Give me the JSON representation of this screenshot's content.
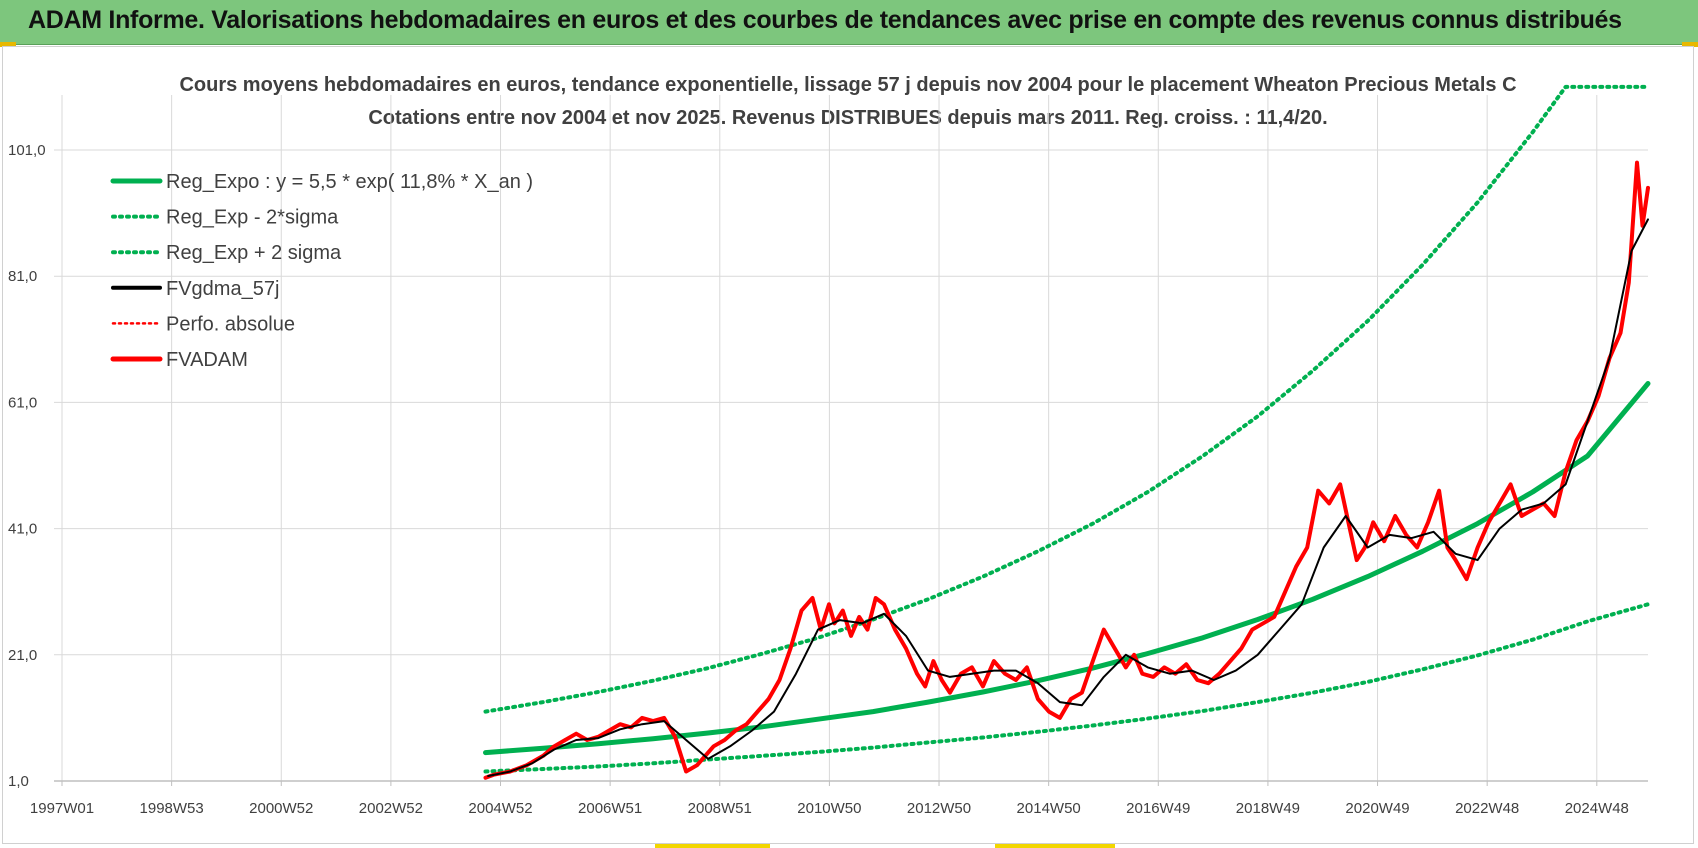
{
  "header": {
    "title": "ADAM Informe. Valorisations hebdomadaires en euros et des courbes de tendances avec prise en compte des revenus connus distribués"
  },
  "chart_data": {
    "type": "line",
    "title": "Cours moyens hebdomadaires en euros, tendance exponentielle, lissage 57 j depuis nov 2004 pour le placement Wheaton Precious Metals C",
    "subtitle": "Cotations entre nov 2004 et nov 2025. Revenus DISTRIBUES depuis mars 2011. Reg. croiss. : 11,4/20.",
    "xlabel": "",
    "ylabel": "",
    "x_range": [
      1997.0,
      2026.0
    ],
    "ylim": [
      1.0,
      111.0
    ],
    "y_ticks": [
      "1,0",
      "21,0",
      "41,0",
      "61,0",
      "81,0",
      "101,0"
    ],
    "x_ticks": [
      "1997W01",
      "1998W53",
      "2000W52",
      "2002W52",
      "2004W52",
      "2006W51",
      "2008W51",
      "2010W50",
      "2012W50",
      "2014W50",
      "2016W49",
      "2018W49",
      "2020W49",
      "2022W48",
      "2024W48"
    ],
    "grid": true,
    "legend_position": "top-left",
    "legend": [
      "Reg_Expo : y = 5,5 * exp( 11,8% *  X_an )",
      "Reg_Exp - 2*sigma",
      "Reg_Exp + 2 sigma",
      "FVgdma_57j",
      "Perfo. absolue",
      "FVADAM"
    ],
    "colors": {
      "reg": "#00b050",
      "fv": "#ff0000",
      "ma": "#000000",
      "grid": "#d9d9d9",
      "axis": "#bfbfbf"
    },
    "series": [
      {
        "name": "FVADAM",
        "x": [
          2004.85,
          2005.0,
          2005.3,
          2005.6,
          2005.9,
          2006.1,
          2006.3,
          2006.5,
          2006.7,
          2006.9,
          2007.1,
          2007.3,
          2007.5,
          2007.7,
          2007.9,
          2008.1,
          2008.3,
          2008.5,
          2008.7,
          2008.85,
          2009.0,
          2009.2,
          2009.4,
          2009.6,
          2009.8,
          2010.0,
          2010.2,
          2010.4,
          2010.6,
          2010.8,
          2010.95,
          2011.1,
          2011.2,
          2011.35,
          2011.5,
          2011.65,
          2011.8,
          2011.95,
          2012.1,
          2012.3,
          2012.5,
          2012.7,
          2012.85,
          2013.0,
          2013.15,
          2013.3,
          2013.5,
          2013.7,
          2013.9,
          2014.1,
          2014.3,
          2014.5,
          2014.7,
          2014.9,
          2015.1,
          2015.3,
          2015.5,
          2015.7,
          2015.9,
          2016.1,
          2016.3,
          2016.5,
          2016.65,
          2016.8,
          2017.0,
          2017.2,
          2017.4,
          2017.6,
          2017.8,
          2018.0,
          2018.2,
          2018.4,
          2018.6,
          2018.8,
          2019.0,
          2019.2,
          2019.4,
          2019.6,
          2019.8,
          2020.0,
          2020.2,
          2020.4,
          2020.55,
          2020.7,
          2020.85,
          2021.0,
          2021.2,
          2021.4,
          2021.6,
          2021.8,
          2022.0,
          2022.2,
          2022.35,
          2022.5,
          2022.7,
          2022.9,
          2023.1,
          2023.3,
          2023.5,
          2023.7,
          2023.9,
          2024.1,
          2024.3,
          2024.5,
          2024.7,
          2024.9,
          2025.1,
          2025.3,
          2025.5,
          2025.65,
          2025.8,
          2025.9,
          2026.0
        ],
        "values": [
          1.5,
          2.0,
          2.5,
          3.5,
          5.0,
          6.5,
          7.5,
          8.5,
          7.5,
          8.0,
          9.0,
          10.0,
          9.5,
          11.0,
          10.5,
          11.0,
          8.0,
          2.5,
          3.5,
          5.0,
          6.5,
          7.5,
          9.0,
          10.0,
          12.0,
          14.0,
          17.0,
          22.0,
          28.0,
          30.0,
          25.0,
          29.0,
          26.0,
          28.0,
          24.0,
          27.0,
          25.0,
          30.0,
          29.0,
          25.0,
          22.0,
          18.0,
          16.0,
          20.0,
          17.0,
          15.0,
          18.0,
          19.0,
          16.0,
          20.0,
          18.0,
          17.0,
          19.0,
          14.0,
          12.0,
          11.0,
          14.0,
          15.0,
          20.0,
          25.0,
          22.0,
          19.0,
          21.0,
          18.0,
          17.5,
          19.0,
          18.0,
          19.5,
          17.0,
          16.5,
          18.0,
          20.0,
          22.0,
          25.0,
          26.0,
          27.0,
          31.0,
          35.0,
          38.0,
          47.0,
          45.0,
          48.0,
          42.0,
          36.0,
          38.0,
          42.0,
          39.0,
          43.0,
          40.0,
          38.0,
          42.0,
          47.0,
          38.0,
          36.0,
          33.0,
          38.0,
          42.0,
          45.0,
          48.0,
          43.0,
          44.0,
          45.0,
          43.0,
          50.0,
          55.0,
          58.0,
          62.0,
          68.0,
          72.0,
          80.0,
          99.0,
          89.0,
          95.0
        ]
      },
      {
        "name": "FVgdma_57j",
        "x": [
          2004.9,
          2005.3,
          2005.7,
          2006.1,
          2006.5,
          2006.9,
          2007.3,
          2007.7,
          2008.1,
          2008.5,
          2008.9,
          2009.3,
          2009.7,
          2010.1,
          2010.5,
          2010.9,
          2011.3,
          2011.7,
          2012.1,
          2012.5,
          2012.9,
          2013.3,
          2013.7,
          2014.1,
          2014.5,
          2014.9,
          2015.3,
          2015.7,
          2016.1,
          2016.5,
          2016.9,
          2017.3,
          2017.7,
          2018.1,
          2018.5,
          2018.9,
          2019.3,
          2019.7,
          2020.1,
          2020.5,
          2020.9,
          2021.3,
          2021.7,
          2022.1,
          2022.5,
          2022.9,
          2023.3,
          2023.7,
          2024.1,
          2024.5,
          2024.9,
          2025.3,
          2025.7,
          2026.0
        ],
        "values": [
          1.8,
          2.5,
          3.8,
          6.0,
          7.5,
          7.8,
          9.2,
          10.0,
          10.5,
          7.5,
          4.5,
          6.5,
          9.0,
          12.0,
          18.0,
          25.0,
          26.5,
          26.0,
          27.5,
          24.0,
          18.5,
          17.5,
          18.0,
          18.5,
          18.5,
          16.5,
          13.5,
          13.0,
          17.5,
          21.0,
          19.0,
          18.0,
          18.5,
          17.0,
          18.5,
          21.0,
          25.0,
          29.0,
          38.0,
          43.0,
          38.0,
          40.0,
          39.5,
          40.5,
          37.0,
          36.0,
          41.0,
          44.0,
          45.0,
          48.0,
          58.0,
          68.0,
          85.0,
          90.0
        ]
      },
      {
        "name": "Reg_Expo : y = 5,5 * exp( 11,8% *  X_an )",
        "x": [
          2004.85,
          2005.9,
          2006.9,
          2007.9,
          2008.9,
          2009.9,
          2010.9,
          2011.9,
          2012.9,
          2013.9,
          2014.9,
          2015.9,
          2016.9,
          2017.9,
          2018.9,
          2019.9,
          2020.9,
          2021.9,
          2022.9,
          2023.9,
          2024.9,
          2026.0
        ],
        "values": [
          5.5,
          6.2,
          6.9,
          7.7,
          8.6,
          9.6,
          10.8,
          12.0,
          13.5,
          15.1,
          16.9,
          18.9,
          21.2,
          23.7,
          26.6,
          29.8,
          33.4,
          37.4,
          41.8,
          46.8,
          52.5,
          64.0
        ]
      },
      {
        "name": "Reg_Exp - 2*sigma",
        "x": [
          2004.85,
          2005.9,
          2006.9,
          2007.9,
          2008.9,
          2009.9,
          2010.9,
          2011.9,
          2012.9,
          2013.9,
          2014.9,
          2015.9,
          2016.9,
          2017.9,
          2018.9,
          2019.9,
          2020.9,
          2021.9,
          2022.9,
          2023.9,
          2024.9,
          2026.0
        ],
        "values": [
          2.5,
          2.9,
          3.3,
          3.8,
          4.4,
          5.0,
          5.6,
          6.3,
          7.1,
          7.9,
          8.8,
          9.8,
          10.9,
          12.1,
          13.5,
          15.0,
          16.7,
          18.7,
          20.9,
          23.4,
          26.3,
          29.0
        ]
      },
      {
        "name": "Reg_Exp + 2 sigma",
        "x": [
          2004.85,
          2005.9,
          2006.9,
          2007.9,
          2008.9,
          2009.9,
          2010.9,
          2011.9,
          2012.9,
          2013.9,
          2014.9,
          2015.9,
          2016.9,
          2017.9,
          2018.9,
          2019.9,
          2020.9,
          2021.9,
          2022.9,
          2023.9,
          2024.5,
          2025.0,
          2026.0
        ],
        "values": [
          12.0,
          13.5,
          15.1,
          16.9,
          18.9,
          21.2,
          23.7,
          26.6,
          29.8,
          33.4,
          37.4,
          41.8,
          46.8,
          52.5,
          58.8,
          66.0,
          73.9,
          82.8,
          92.7,
          103.8,
          111.0,
          111.0,
          111.0
        ]
      }
    ]
  }
}
